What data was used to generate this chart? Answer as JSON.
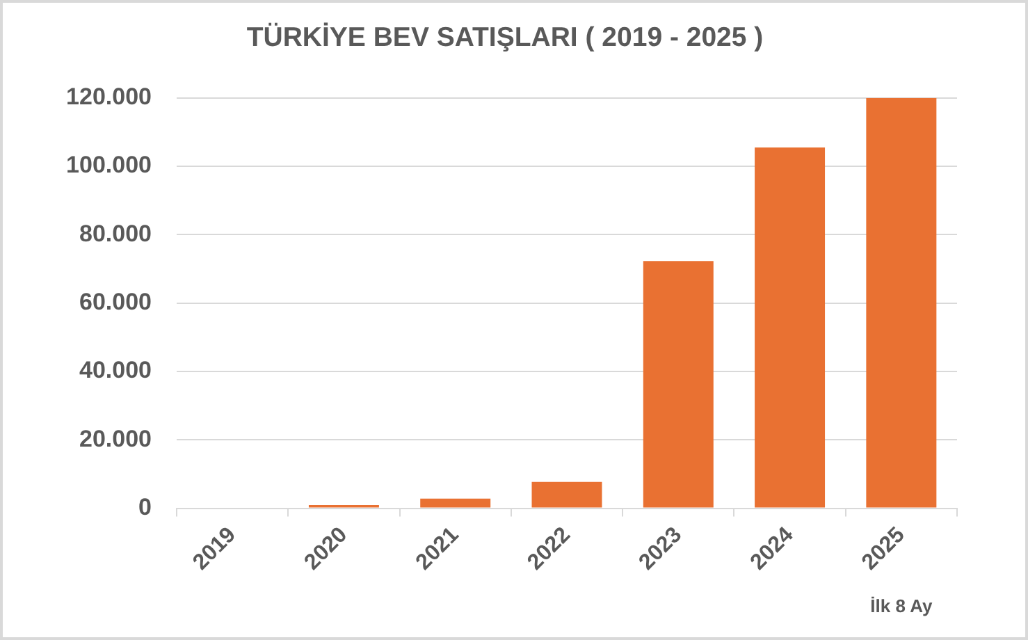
{
  "chart_data": {
    "type": "bar",
    "title": "TÜRKİYE BEV SATIŞLARI ( 2019 - 2025 )",
    "categories": [
      "2019",
      "2020",
      "2021",
      "2022",
      "2023",
      "2024",
      "2025"
    ],
    "values": [
      0,
      900,
      2800,
      7700,
      72300,
      105500,
      120000
    ],
    "color": "#e97132",
    "ylim": [
      0,
      120000
    ],
    "yticks": [
      0,
      {
        "value": 20000,
        "label": "20.000"
      },
      {
        "value": 40000,
        "label": "40.000"
      },
      {
        "value": 60000,
        "label": "60.000"
      },
      {
        "value": 80000,
        "label": "80.000"
      },
      {
        "value": 100000,
        "label": "100.000"
      },
      {
        "value": 120000,
        "label": "120.000"
      }
    ],
    "grid": "y",
    "legend": false,
    "annotations": [
      "İlk 8 Ay"
    ]
  }
}
